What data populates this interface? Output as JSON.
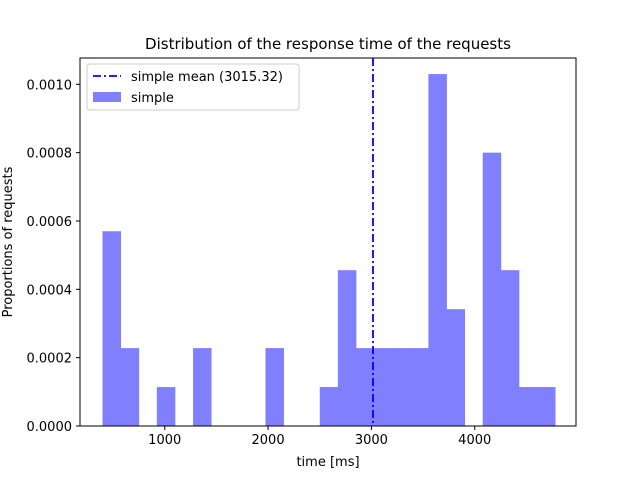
{
  "chart_data": {
    "type": "bar",
    "title": "Distribution of the response time of the requests",
    "xlabel": "time [ms]",
    "ylabel": "Proportions of requests",
    "xlim": [
      180,
      4980
    ],
    "ylim": [
      0,
      0.001077
    ],
    "xticks": [
      {
        "value": 1000,
        "label": "1000"
      },
      {
        "value": 2000,
        "label": "2000"
      },
      {
        "value": 3000,
        "label": "3000"
      },
      {
        "value": 4000,
        "label": "4000"
      }
    ],
    "yticks": [
      {
        "value": 0.0,
        "label": "0.0000"
      },
      {
        "value": 0.0002,
        "label": "0.0002"
      },
      {
        "value": 0.0004,
        "label": "0.0004"
      },
      {
        "value": 0.0006,
        "label": "0.0006"
      },
      {
        "value": 0.0008,
        "label": "0.0008"
      },
      {
        "value": 0.001,
        "label": "0.0010"
      }
    ],
    "histogram": {
      "name": "simple",
      "color": "#8080ff",
      "bin_start": 398,
      "bin_width": 175.2,
      "values": [
        0.00057,
        0.000228,
        0,
        0.000114,
        0,
        0.000228,
        0,
        0,
        0,
        0.000228,
        0,
        0,
        0.000114,
        0.000456,
        0.000228,
        0.000228,
        0.000228,
        0.000228,
        0.00103,
        0.000342,
        0,
        0.0008,
        0.000456,
        0.000114,
        0.000114
      ]
    },
    "mean_line": {
      "name": "simple mean (3015.32)",
      "value": 3015.32,
      "color": "#0000ff",
      "style": "dash-dot"
    },
    "legend": {
      "placement": "top-left",
      "entries": [
        "simple mean (3015.32)",
        "simple"
      ]
    },
    "grid": false
  }
}
